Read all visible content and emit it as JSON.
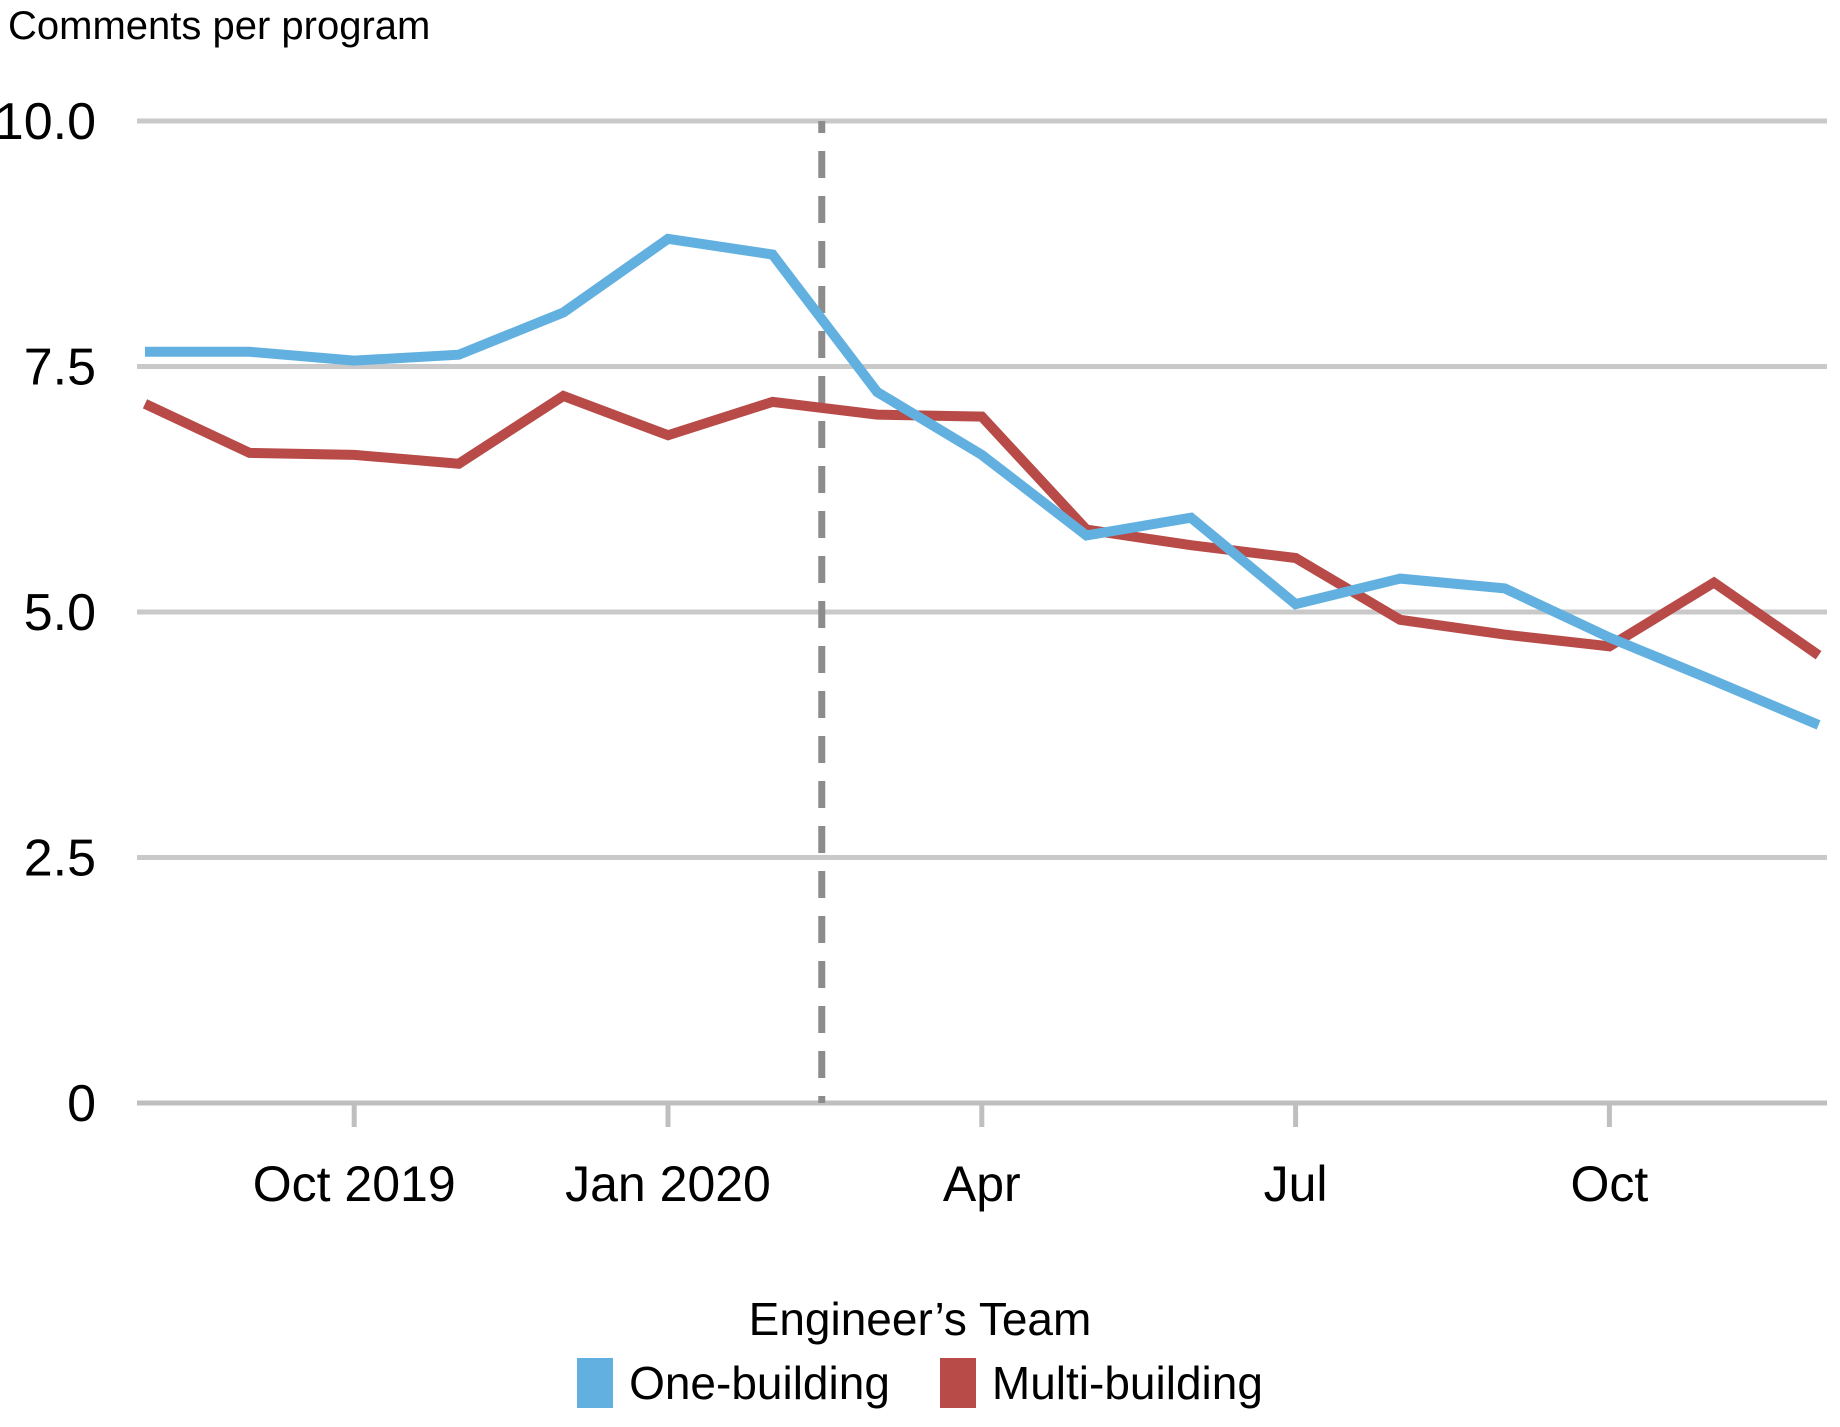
{
  "title": "Comments per program",
  "legend": {
    "title": "Engineer’s Team",
    "items": [
      {
        "label": "One-building",
        "color": "#62b0e0"
      },
      {
        "label": "Multi-building",
        "color": "#b84a47"
      }
    ]
  },
  "colors": {
    "background": "#ffffff",
    "gridline": "#c9c9c9",
    "axis": "#bfbfbf",
    "vline": "#8c8c8c",
    "text": "#000000"
  },
  "chart_data": {
    "type": "line",
    "title": "Comments per program",
    "xlabel": "",
    "ylabel": "Comments per program",
    "ylim": [
      0,
      10
    ],
    "grid": "horizontal",
    "legend_position": "bottom",
    "x": [
      "Aug 2019",
      "Sep 2019",
      "Oct 2019",
      "Nov 2019",
      "Dec 2019",
      "Jan 2020",
      "Feb 2020",
      "Mar 2020",
      "Apr 2020",
      "May 2020",
      "Jun 2020",
      "Jul 2020",
      "Aug 2020",
      "Sep 2020",
      "Oct 2020",
      "Nov 2020",
      "Dec 2020"
    ],
    "series": [
      {
        "name": "One-building",
        "color": "#62b0e0",
        "values": [
          7.65,
          7.65,
          7.56,
          7.62,
          8.05,
          8.8,
          8.64,
          7.24,
          6.6,
          5.78,
          5.96,
          5.08,
          5.34,
          5.24,
          4.74,
          4.3,
          3.85
        ]
      },
      {
        "name": "Multi-building",
        "color": "#b84a47",
        "values": [
          7.12,
          6.62,
          6.6,
          6.51,
          7.2,
          6.8,
          7.14,
          7.01,
          6.99,
          5.84,
          5.68,
          5.55,
          4.92,
          4.77,
          4.65,
          5.3,
          4.56
        ]
      }
    ],
    "yticks": [
      {
        "value": 0,
        "label": "0"
      },
      {
        "value": 2.5,
        "label": "2.5"
      },
      {
        "value": 5,
        "label": "5.0"
      },
      {
        "value": 7.5,
        "label": "7.5"
      },
      {
        "value": 10,
        "label": "10.0"
      }
    ],
    "xticks": [
      {
        "month_index": 2,
        "label": "Oct 2019"
      },
      {
        "month_index": 5,
        "label": "Jan 2020"
      },
      {
        "month_index": 8,
        "label": "Apr"
      },
      {
        "month_index": 11,
        "label": "Jul"
      },
      {
        "month_index": 14,
        "label": "Oct"
      }
    ],
    "vline": {
      "month_index": 6.47,
      "style": "dashed",
      "color": "#8c8c8c"
    }
  }
}
